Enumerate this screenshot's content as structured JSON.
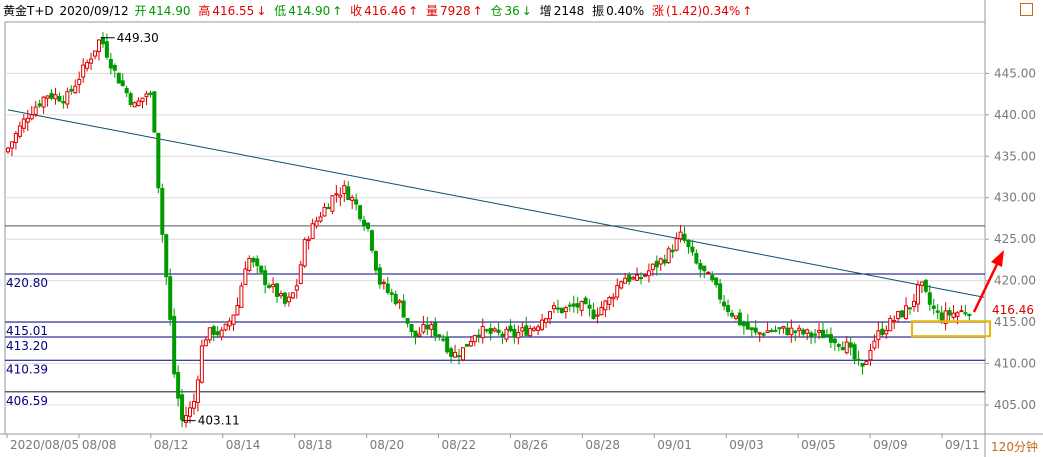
{
  "header": {
    "symbol": "黄金T+D",
    "date": "2020/09/12",
    "open_label": "开",
    "open": "414.90",
    "high_label": "高",
    "high": "416.55",
    "low_label": "低",
    "low": "414.90",
    "close_label": "收",
    "close": "416.46",
    "volume_label": "量",
    "volume": "7928",
    "position_label": "仓",
    "position": "36",
    "increase_label": "增",
    "increase": "2148",
    "amplitude_label": "振",
    "amplitude": "0.40%",
    "change_label": "涨",
    "change": "(1.42)0.34%",
    "arrow_up": "↑",
    "arrow_down": "↓"
  },
  "period_button": "120分钟",
  "colors": {
    "up": "#e00000",
    "down": "#009900",
    "trend": "#0b4f6c",
    "level": "#000080",
    "annotation_box": "#f0b400",
    "annotation_arrow": "#ff0000",
    "axis_accent": "#c46a1e"
  },
  "chart_data": {
    "type": "candlestick",
    "symbol": "黄金T+D",
    "interval": "120分钟",
    "ylim": [
      401.5,
      451.2
    ],
    "y_ticks": [
      "405.00",
      "410.00",
      "415.00",
      "420.00",
      "425.00",
      "430.00",
      "435.00",
      "440.00",
      "445.00"
    ],
    "x_labels": [
      "2020/08/05",
      "08/08",
      "08/12",
      "08/14",
      "08/18",
      "08/20",
      "08/22",
      "08/26",
      "08/28",
      "09/01",
      "09/03",
      "09/05",
      "09/09",
      "09/11"
    ],
    "max_label": "449.30",
    "min_label": "403.11",
    "last_price": "416.46",
    "levels": [
      {
        "label": "420.80",
        "value": 420.8
      },
      {
        "label": "415.01",
        "value": 415.01
      },
      {
        "label": "413.20",
        "value": 413.2
      },
      {
        "label": "410.39",
        "value": 410.39
      },
      {
        "label": "406.59",
        "value": 406.59
      }
    ],
    "trendline": [
      [
        0,
        440.6
      ],
      [
        100,
        418.0
      ]
    ],
    "extra_lines": [
      426.6,
      406.6
    ],
    "close_path": [
      [
        0,
        436.0
      ],
      [
        2,
        440.0
      ],
      [
        4,
        442.5
      ],
      [
        6,
        442.0
      ],
      [
        8,
        446.0
      ],
      [
        9.5,
        449.3
      ],
      [
        11,
        445.0
      ],
      [
        13,
        441.0
      ],
      [
        14.5,
        443.0
      ],
      [
        15,
        438.5
      ],
      [
        15.5,
        430.0
      ],
      [
        16,
        423.0
      ],
      [
        16.5,
        417.0
      ],
      [
        17,
        409.0
      ],
      [
        17.8,
        403.11
      ],
      [
        19,
        405.0
      ],
      [
        20,
        413.0
      ],
      [
        21,
        414.0
      ],
      [
        22,
        413.5
      ],
      [
        23.5,
        417.0
      ],
      [
        24.5,
        423.0
      ],
      [
        26,
        420.5
      ],
      [
        27.5,
        418.5
      ],
      [
        28.5,
        417.0
      ],
      [
        29.5,
        419.0
      ],
      [
        30.5,
        425.0
      ],
      [
        32,
        428.0
      ],
      [
        33.5,
        430.5
      ],
      [
        34.5,
        431.0
      ],
      [
        35.5,
        429.5
      ],
      [
        37,
        426.0
      ],
      [
        38,
        420.0
      ],
      [
        39,
        418.5
      ],
      [
        40,
        417.5
      ],
      [
        40.8,
        415.5
      ],
      [
        41.5,
        413.0
      ],
      [
        43,
        414.5
      ],
      [
        44.5,
        413.2
      ],
      [
        45.5,
        411.0
      ],
      [
        46.5,
        411.5
      ],
      [
        48,
        414.0
      ],
      [
        50,
        413.5
      ],
      [
        52,
        413.5
      ],
      [
        54,
        414.5
      ],
      [
        55.5,
        416.5
      ],
      [
        57,
        416.5
      ],
      [
        58.5,
        417.0
      ],
      [
        60,
        416.0
      ],
      [
        61.5,
        417.5
      ],
      [
        63,
        420.5
      ],
      [
        64.5,
        420.0
      ],
      [
        66,
        421.5
      ],
      [
        67.5,
        423.0
      ],
      [
        69,
        425.5
      ],
      [
        70.5,
        422.0
      ],
      [
        72,
        420.0
      ],
      [
        73.5,
        417.0
      ],
      [
        75,
        415.0
      ],
      [
        76.5,
        413.5
      ],
      [
        78,
        414.0
      ],
      [
        80,
        414.0
      ],
      [
        82,
        413.5
      ],
      [
        84,
        413.5
      ],
      [
        86,
        412.0
      ],
      [
        87.5,
        409.0
      ],
      [
        88.5,
        412.5
      ],
      [
        89.5,
        414.0
      ],
      [
        91,
        415.5
      ],
      [
        92.5,
        417.0
      ],
      [
        93.5,
        419.5
      ],
      [
        94.5,
        417.0
      ],
      [
        95.5,
        415.5
      ],
      [
        96.5,
        416.0
      ],
      [
        97.5,
        416.2
      ],
      [
        98.5,
        416.46
      ]
    ]
  }
}
